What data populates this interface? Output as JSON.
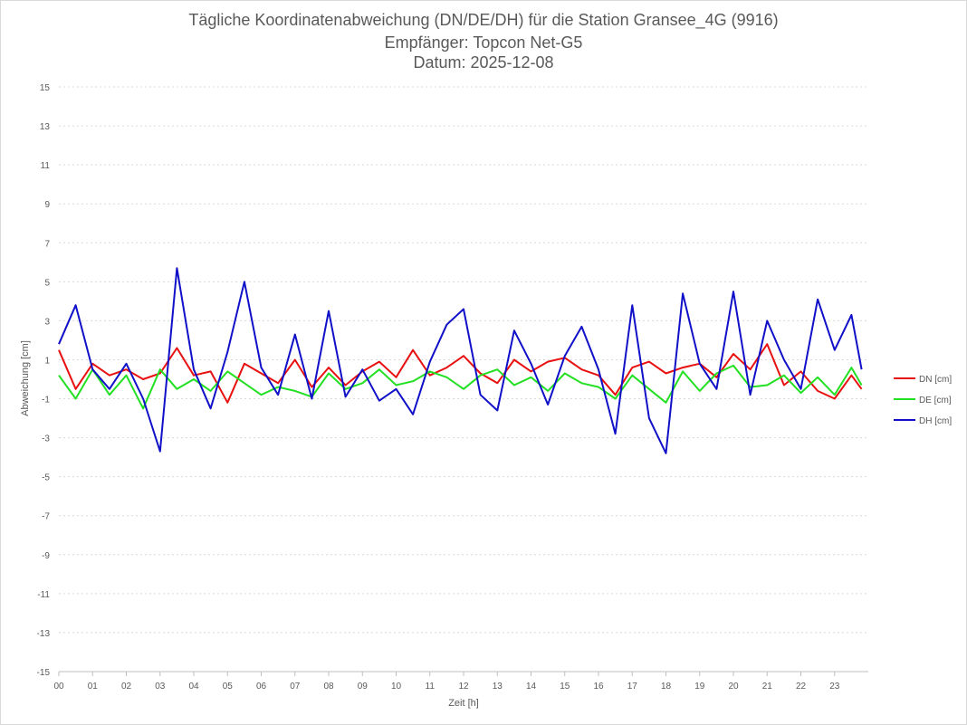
{
  "chart_data": {
    "type": "line",
    "title": "Tägliche Koordinatenabweichung (DN/DE/DH) für die Station Gransee_4G (9916)",
    "subtitle_receiver": "Empfänger: Topcon Net-G5",
    "subtitle_date": "Datum: 2025-12-08",
    "xlabel": "Zeit [h]",
    "ylabel": "Abweichung [cm]",
    "xlim": [
      0,
      24
    ],
    "ylim": [
      -15,
      15
    ],
    "x_ticks": [
      "00",
      "01",
      "02",
      "03",
      "04",
      "05",
      "06",
      "07",
      "08",
      "09",
      "10",
      "11",
      "12",
      "13",
      "14",
      "15",
      "16",
      "17",
      "18",
      "19",
      "20",
      "21",
      "22",
      "23"
    ],
    "y_ticks": [
      "15",
      "13",
      "11",
      "9",
      "7",
      "5",
      "3",
      "1",
      "-1",
      "-3",
      "-5",
      "-7",
      "-9",
      "-11",
      "-13",
      "-15"
    ],
    "grid": true,
    "legend_position": "right",
    "x": [
      0,
      0.5,
      1,
      1.5,
      2,
      2.5,
      3,
      3.5,
      4,
      4.5,
      5,
      5.5,
      6,
      6.5,
      7,
      7.5,
      8,
      8.5,
      9,
      9.5,
      10,
      10.5,
      11,
      11.5,
      12,
      12.5,
      13,
      13.5,
      14,
      14.5,
      15,
      15.5,
      16,
      16.5,
      17,
      17.5,
      18,
      18.5,
      19,
      19.5,
      20,
      20.5,
      21,
      21.5,
      22,
      22.5,
      23,
      23.5,
      23.8
    ],
    "series": [
      {
        "name": "DN [cm]",
        "color": "#e81010",
        "values": [
          1.5,
          -0.5,
          0.8,
          0.2,
          0.5,
          0.0,
          0.3,
          1.6,
          0.2,
          0.4,
          -1.2,
          0.8,
          0.3,
          -0.2,
          1.0,
          -0.4,
          0.6,
          -0.3,
          0.4,
          0.9,
          0.1,
          1.5,
          0.2,
          0.6,
          1.2,
          0.3,
          -0.2,
          1.0,
          0.4,
          0.9,
          1.1,
          0.5,
          0.2,
          -0.8,
          0.6,
          0.9,
          0.3,
          0.6,
          0.8,
          0.1,
          1.3,
          0.5,
          1.8,
          -0.3,
          0.4,
          -0.6,
          -1.0,
          0.2,
          -0.5
        ]
      },
      {
        "name": "DE [cm]",
        "color": "#22e022",
        "values": [
          0.2,
          -1.0,
          0.5,
          -0.8,
          0.2,
          -1.5,
          0.5,
          -0.5,
          0.0,
          -0.6,
          0.4,
          -0.2,
          -0.8,
          -0.4,
          -0.6,
          -0.9,
          0.3,
          -0.5,
          -0.2,
          0.5,
          -0.3,
          -0.1,
          0.4,
          0.1,
          -0.5,
          0.2,
          0.5,
          -0.3,
          0.1,
          -0.6,
          0.3,
          -0.2,
          -0.4,
          -1.0,
          0.2,
          -0.5,
          -1.2,
          0.4,
          -0.6,
          0.3,
          0.7,
          -0.4,
          -0.3,
          0.2,
          -0.7,
          0.1,
          -0.8,
          0.6,
          -0.3
        ]
      },
      {
        "name": "DH [cm]",
        "color": "#1010c8",
        "values": [
          1.8,
          3.8,
          0.5,
          -0.5,
          0.8,
          -1.0,
          -3.7,
          5.7,
          0.5,
          -1.5,
          1.4,
          5.0,
          0.6,
          -0.8,
          2.3,
          -1.0,
          3.5,
          -0.9,
          0.5,
          -1.1,
          -0.5,
          -1.8,
          0.9,
          2.8,
          3.6,
          -0.8,
          -1.6,
          2.5,
          0.8,
          -1.3,
          1.2,
          2.7,
          0.5,
          -2.8,
          3.8,
          -2.0,
          -3.8,
          4.4,
          0.8,
          -0.5,
          4.5,
          -0.8,
          3.0,
          1.0,
          -0.5,
          4.1,
          1.5,
          3.3,
          0.5
        ]
      }
    ]
  }
}
